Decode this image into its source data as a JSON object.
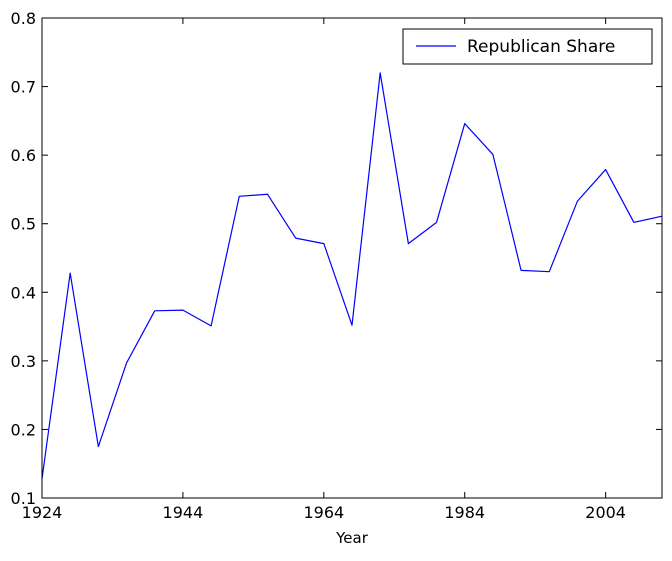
{
  "chart_data": {
    "type": "line",
    "title": "",
    "xlabel": "Year",
    "ylabel": "",
    "xlim": [
      1924,
      2012
    ],
    "ylim": [
      0.1,
      0.8
    ],
    "xticks": [
      1924,
      1944,
      1964,
      1984,
      2004
    ],
    "xtick_labels": [
      "1924",
      "1944",
      "1964",
      "1984",
      "2004"
    ],
    "yticks": [
      0.1,
      0.2,
      0.3,
      0.4,
      0.5,
      0.6,
      0.7,
      0.8
    ],
    "ytick_labels": [
      "0.1",
      "0.2",
      "0.3",
      "0.4",
      "0.5",
      "0.6",
      "0.7",
      "0.8"
    ],
    "grid": false,
    "legend_position": "top-right",
    "series": [
      {
        "name": "Republican Share",
        "color": "#0000ff",
        "x": [
          1924,
          1928,
          1932,
          1936,
          1940,
          1944,
          1948,
          1952,
          1956,
          1960,
          1964,
          1968,
          1972,
          1976,
          1980,
          1984,
          1988,
          1992,
          1996,
          2000,
          2004,
          2008,
          2012
        ],
        "y": [
          0.128,
          0.428,
          0.175,
          0.297,
          0.373,
          0.374,
          0.351,
          0.54,
          0.543,
          0.479,
          0.471,
          0.352,
          0.72,
          0.471,
          0.502,
          0.646,
          0.601,
          0.432,
          0.43,
          0.533,
          0.579,
          0.502,
          0.511
        ]
      }
    ]
  }
}
